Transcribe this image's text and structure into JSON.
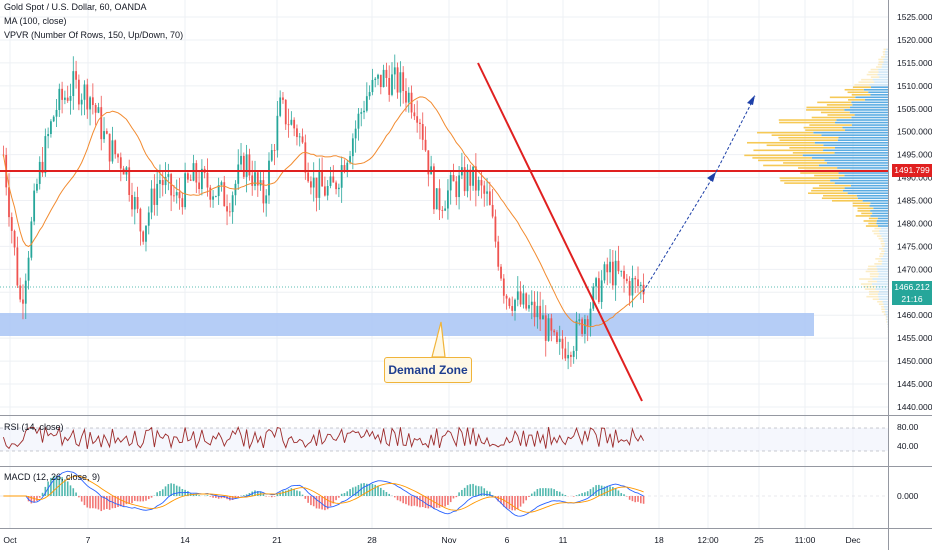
{
  "header": {
    "symbol": "Gold Spot / U.S. Dollar, 60, OANDA",
    "ma": "MA (100, close)",
    "vpvr": "VPVR (Number Of Rows, 150, Up/Down, 70)"
  },
  "price_axis": {
    "ticks": [
      "1525.000",
      "1520.000",
      "1515.000",
      "1510.000",
      "1505.000",
      "1500.000",
      "1495.000",
      "1490.000",
      "1485.000",
      "1480.000",
      "1475.000",
      "1470.000",
      "1465.000",
      "1460.000",
      "1455.000",
      "1450.000",
      "1445.000",
      "1440.000"
    ],
    "resistance_label": "1491.799",
    "current_price_label": "1466.212",
    "countdown_label": "21:16"
  },
  "time_axis": {
    "ticks": [
      "Oct",
      "7",
      "14",
      "21",
      "28",
      "Nov",
      "6",
      "11",
      "18",
      "12:00",
      "25",
      "11:00",
      "Dec"
    ]
  },
  "annotations": {
    "demand_zone": "Demand Zone"
  },
  "rsi": {
    "label": "RSI (14, close)",
    "ticks": [
      "80.00",
      "40.00"
    ]
  },
  "macd": {
    "label": "MACD (12, 26, close, 9)",
    "ticks": [
      "0.000"
    ]
  },
  "colors": {
    "up": "#26a69a",
    "down": "#ef5350",
    "ma": "#f28b30",
    "resistance": "#e02020",
    "trendline": "#e02020",
    "projection": "#1c3fa8",
    "demand_zone": "#a8c4f5",
    "vp_up": "#4aa3df",
    "vp_down": "#f5c342",
    "rsi": "#9c2b2b",
    "macd_line": "#2962ff",
    "signal_line": "#ff9800",
    "price_tag": "#26a69a"
  },
  "chart_data": {
    "type": "candlestick",
    "instrument": "Gold Spot / U.S. Dollar",
    "timeframe": "60",
    "ylim": [
      1438,
      1528
    ],
    "x": [
      "Oct",
      "7",
      "14",
      "21",
      "28",
      "Nov",
      "6",
      "11",
      "18"
    ],
    "closes": [
      1495,
      1462,
      1490,
      1505,
      1510,
      1508,
      1497,
      1493,
      1478,
      1490,
      1485,
      1490,
      1488,
      1485,
      1494,
      1485,
      1505,
      1500,
      1488,
      1487,
      1497,
      1508,
      1512,
      1510,
      1505,
      1484,
      1488,
      1490,
      1485,
      1465,
      1462,
      1460,
      1452,
      1455,
      1463,
      1470,
      1467,
      1466
    ],
    "resistance_level": 1491.799,
    "current_price": 1466.212,
    "demand_zone": [
      1456,
      1461
    ],
    "ma_period": 100
  }
}
